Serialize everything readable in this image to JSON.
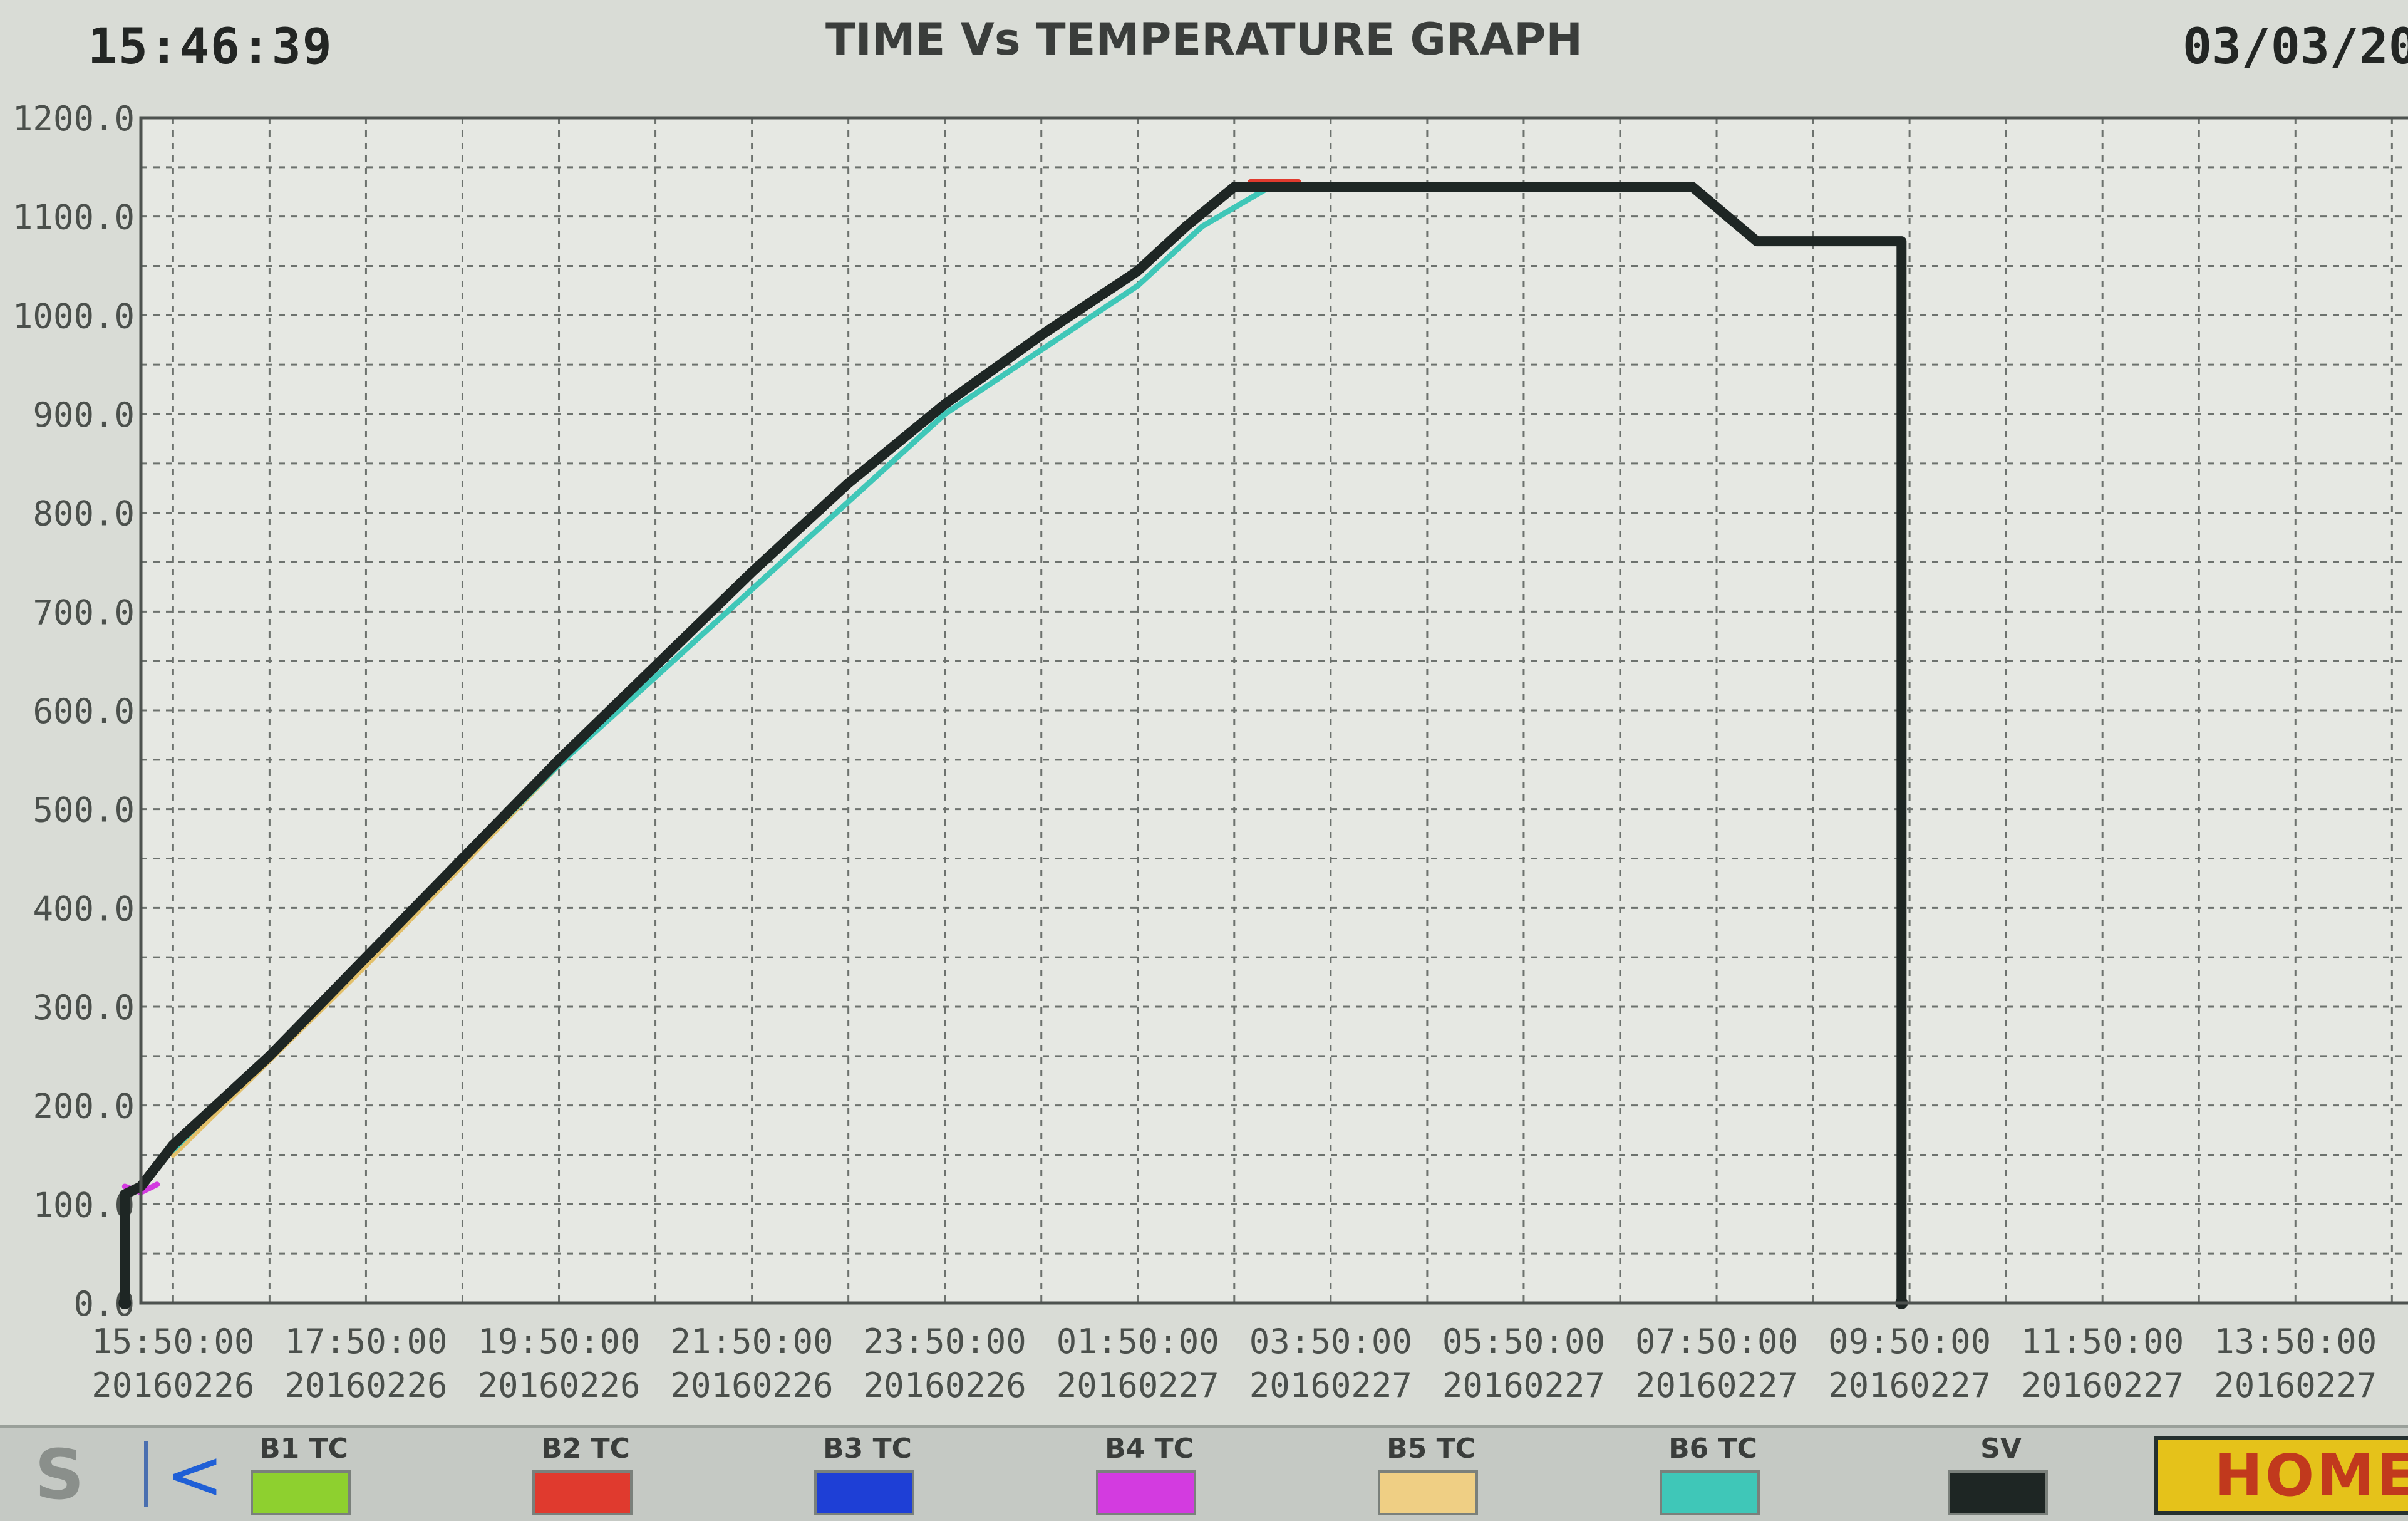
{
  "header": {
    "time": "15:46:39",
    "title": "TIME Vs TEMPERATURE GRAPH",
    "date": "03/03/20"
  },
  "chart_data": {
    "type": "line",
    "title": "TIME Vs TEMPERATURE GRAPH",
    "xlabel": "",
    "ylabel": "",
    "ylim": [
      0,
      1200
    ],
    "xlim": [
      "2016-02-26 15:30",
      "2016-02-27 15:00"
    ],
    "grid": true,
    "legend_placement": "bottom",
    "y_ticks": [
      "0.0",
      "100.0",
      "200.0",
      "300.0",
      "400.0",
      "500.0",
      "600.0",
      "700.0",
      "800.0",
      "900.0",
      "1000.0",
      "1100.0",
      "1200.0"
    ],
    "x_ticks": [
      {
        "x": "2016-02-26 15:50",
        "time": "15:50:00",
        "date": "20160226"
      },
      {
        "x": "2016-02-26 17:50",
        "time": "17:50:00",
        "date": "20160226"
      },
      {
        "x": "2016-02-26 19:50",
        "time": "19:50:00",
        "date": "20160226"
      },
      {
        "x": "2016-02-26 21:50",
        "time": "21:50:00",
        "date": "20160226"
      },
      {
        "x": "2016-02-26 23:50",
        "time": "23:50:00",
        "date": "20160226"
      },
      {
        "x": "2016-02-27 01:50",
        "time": "01:50:00",
        "date": "20160227"
      },
      {
        "x": "2016-02-27 03:50",
        "time": "03:50:00",
        "date": "20160227"
      },
      {
        "x": "2016-02-27 05:50",
        "time": "05:50:00",
        "date": "20160227"
      },
      {
        "x": "2016-02-27 07:50",
        "time": "07:50:00",
        "date": "20160227"
      },
      {
        "x": "2016-02-27 09:50",
        "time": "09:50:00",
        "date": "20160227"
      },
      {
        "x": "2016-02-27 11:50",
        "time": "11:50:00",
        "date": "20160227"
      },
      {
        "x": "2016-02-27 13:50",
        "time": "13:50:00",
        "date": "20160227"
      }
    ],
    "series": [
      {
        "name": "SV",
        "color": "#1e2624",
        "points": [
          {
            "x": "2016-02-26 15:20",
            "y": 0
          },
          {
            "x": "2016-02-26 15:20",
            "y": 110
          },
          {
            "x": "2016-02-26 15:30",
            "y": 118
          },
          {
            "x": "2016-02-26 15:50",
            "y": 160
          },
          {
            "x": "2016-02-26 16:50",
            "y": 250
          },
          {
            "x": "2016-02-26 17:50",
            "y": 350
          },
          {
            "x": "2016-02-26 18:50",
            "y": 450
          },
          {
            "x": "2016-02-26 19:50",
            "y": 550
          },
          {
            "x": "2016-02-26 20:50",
            "y": 645
          },
          {
            "x": "2016-02-26 21:50",
            "y": 740
          },
          {
            "x": "2016-02-26 22:50",
            "y": 830
          },
          {
            "x": "2016-02-26 23:50",
            "y": 910
          },
          {
            "x": "2016-02-27 00:50",
            "y": 980
          },
          {
            "x": "2016-02-27 01:50",
            "y": 1045
          },
          {
            "x": "2016-02-27 02:20",
            "y": 1090
          },
          {
            "x": "2016-02-27 02:50",
            "y": 1130
          },
          {
            "x": "2016-02-27 03:20",
            "y": 1130
          },
          {
            "x": "2016-02-27 07:35",
            "y": 1130
          },
          {
            "x": "2016-02-27 08:15",
            "y": 1075
          },
          {
            "x": "2016-02-27 09:45",
            "y": 1075
          },
          {
            "x": "2016-02-27 09:45",
            "y": 0
          }
        ]
      },
      {
        "name": "B6 TC",
        "color": "#3fc7b8",
        "points": [
          {
            "x": "2016-02-26 15:50",
            "y": 155
          },
          {
            "x": "2016-02-26 19:50",
            "y": 545
          },
          {
            "x": "2016-02-26 23:50",
            "y": 900
          },
          {
            "x": "2016-02-27 01:50",
            "y": 1030
          },
          {
            "x": "2016-02-27 02:30",
            "y": 1090
          },
          {
            "x": "2016-02-27 03:10",
            "y": 1128
          }
        ]
      },
      {
        "name": "B5 TC",
        "color": "#e3c06a",
        "points": [
          {
            "x": "2016-02-26 15:50",
            "y": 150
          },
          {
            "x": "2016-02-26 17:50",
            "y": 342
          },
          {
            "x": "2016-02-26 19:50",
            "y": 545
          }
        ]
      },
      {
        "name": "B4 TC",
        "color": "#d33be0",
        "points": [
          {
            "x": "2016-02-26 15:20",
            "y": 118
          },
          {
            "x": "2016-02-26 15:30",
            "y": 112
          },
          {
            "x": "2016-02-26 15:40",
            "y": 120
          }
        ]
      },
      {
        "name": "B2 TC",
        "color": "#e03a2e",
        "points": [
          {
            "x": "2016-02-27 03:00",
            "y": 1135
          },
          {
            "x": "2016-02-27 03:30",
            "y": 1135
          }
        ]
      }
    ]
  },
  "legend": [
    {
      "label": "B1 TC",
      "color": "#8ed02f"
    },
    {
      "label": "B2 TC",
      "color": "#e03a2e"
    },
    {
      "label": "B3 TC",
      "color": "#1e3fd6"
    },
    {
      "label": "B4 TC",
      "color": "#d33be0"
    },
    {
      "label": "B5 TC",
      "color": "#efcf84"
    },
    {
      "label": "B6 TC",
      "color": "#3fc7b8"
    },
    {
      "label": "SV",
      "color": "#1e2624"
    }
  ],
  "toolbar": {
    "s_glyph": "S",
    "back_glyph": "<",
    "home_label": "HOME"
  }
}
